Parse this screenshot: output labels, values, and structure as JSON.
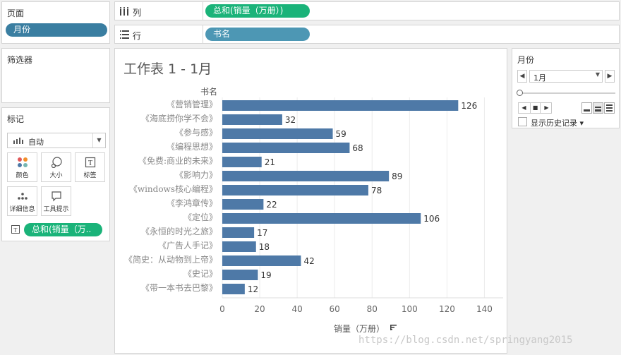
{
  "pages": {
    "title": "页面",
    "pill": "月份"
  },
  "filters": {
    "title": "筛选器"
  },
  "marks": {
    "title": "标记",
    "type": "自动",
    "buttons": [
      {
        "label": "颜色",
        "icon": "color-dots-icon"
      },
      {
        "label": "大小",
        "icon": "size-circle-icon"
      },
      {
        "label": "标签",
        "icon": "label-t-icon"
      },
      {
        "label": "详细信息",
        "icon": "detail-dots-icon"
      },
      {
        "label": "工具提示",
        "icon": "tooltip-bubble-icon"
      }
    ],
    "label_pill": "总和(销量（万.."
  },
  "shelves": {
    "columns": {
      "label": "列",
      "pill": "总和(销量（万册）)"
    },
    "rows": {
      "label": "行",
      "pill": "书名"
    }
  },
  "worksheet": {
    "title": "工作表 1 - 1月"
  },
  "month_filter": {
    "title": "月份",
    "value": "1月",
    "history_label": "显示历史记录"
  },
  "watermark": "https://blog.csdn.net/springyang2015",
  "colors": {
    "bar": "#4e79a7",
    "pill_green": "#1ab379",
    "pill_blue": "#3a7ea1",
    "pill_teal": "#4d97b4"
  },
  "chart_data": {
    "type": "bar",
    "orientation": "horizontal",
    "categories": [
      "《营销管理》",
      "《海底捞你学不会》",
      "《参与感》",
      "《编程思想》",
      "《免费:商业的未来》",
      "《影响力》",
      "《windows核心编程》",
      "《李鸿章传》",
      "《定位》",
      "《永恒的时光之旅》",
      "《广告人手记》",
      "《简史：从动物到上帝》",
      "《史记》",
      "《带一本书去巴黎》"
    ],
    "values": [
      126,
      32,
      59,
      68,
      21,
      89,
      78,
      22,
      106,
      17,
      18,
      42,
      19,
      12
    ],
    "ylabel": "书名",
    "xlabel": "销量（万册）",
    "xlim": [
      0,
      150
    ],
    "xticks": [
      0,
      20,
      40,
      60,
      80,
      100,
      120,
      140
    ],
    "grid": true,
    "data_labels": true
  }
}
